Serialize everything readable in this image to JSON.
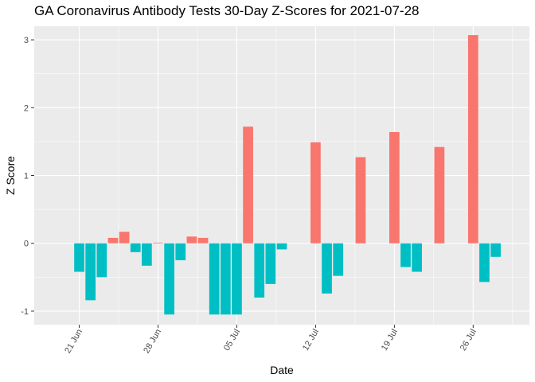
{
  "chart_data": {
    "type": "bar",
    "title": "GA Coronavirus Antibody Tests 30-Day Z-Scores for 2021-07-28",
    "xlabel": "Date",
    "ylabel": "Z Score",
    "ylim": [
      -1.2,
      3.2
    ],
    "y_ticks": [
      -1,
      0,
      1,
      2,
      3
    ],
    "x_ticks": [
      {
        "date": "2021-06-21",
        "label": "21 Jun"
      },
      {
        "date": "2021-06-28",
        "label": "28 Jun"
      },
      {
        "date": "2021-07-05",
        "label": "05 Jul"
      },
      {
        "date": "2021-07-12",
        "label": "12 Jul"
      },
      {
        "date": "2021-07-19",
        "label": "19 Jul"
      },
      {
        "date": "2021-07-26",
        "label": "26 Jul"
      }
    ],
    "xlim": [
      "2021-06-17",
      "2021-07-31"
    ],
    "grid": true,
    "colors": {
      "positive": "#F8766D",
      "negative": "#00BFC4",
      "panel": "#EBEBEB",
      "grid": "#FFFFFF"
    },
    "points": [
      {
        "date": "2021-06-21",
        "z": -0.42
      },
      {
        "date": "2021-06-22",
        "z": -0.84
      },
      {
        "date": "2021-06-23",
        "z": -0.5
      },
      {
        "date": "2021-06-24",
        "z": 0.08
      },
      {
        "date": "2021-06-25",
        "z": 0.17
      },
      {
        "date": "2021-06-26",
        "z": -0.13
      },
      {
        "date": "2021-06-27",
        "z": -0.33
      },
      {
        "date": "2021-06-28",
        "z": 0.01
      },
      {
        "date": "2021-06-29",
        "z": -1.05
      },
      {
        "date": "2021-06-30",
        "z": -0.25
      },
      {
        "date": "2021-07-01",
        "z": 0.1
      },
      {
        "date": "2021-07-02",
        "z": 0.08
      },
      {
        "date": "2021-07-03",
        "z": -1.05
      },
      {
        "date": "2021-07-04",
        "z": -1.05
      },
      {
        "date": "2021-07-05",
        "z": -1.05
      },
      {
        "date": "2021-07-06",
        "z": 1.72
      },
      {
        "date": "2021-07-07",
        "z": -0.8
      },
      {
        "date": "2021-07-08",
        "z": -0.6
      },
      {
        "date": "2021-07-09",
        "z": -0.09
      },
      {
        "date": "2021-07-12",
        "z": 1.49
      },
      {
        "date": "2021-07-13",
        "z": -0.74
      },
      {
        "date": "2021-07-14",
        "z": -0.48
      },
      {
        "date": "2021-07-16",
        "z": 1.27
      },
      {
        "date": "2021-07-19",
        "z": 1.64
      },
      {
        "date": "2021-07-20",
        "z": -0.35
      },
      {
        "date": "2021-07-21",
        "z": -0.42
      },
      {
        "date": "2021-07-23",
        "z": 1.42
      },
      {
        "date": "2021-07-26",
        "z": 3.07
      },
      {
        "date": "2021-07-27",
        "z": -0.57
      },
      {
        "date": "2021-07-28",
        "z": -0.2
      }
    ]
  }
}
